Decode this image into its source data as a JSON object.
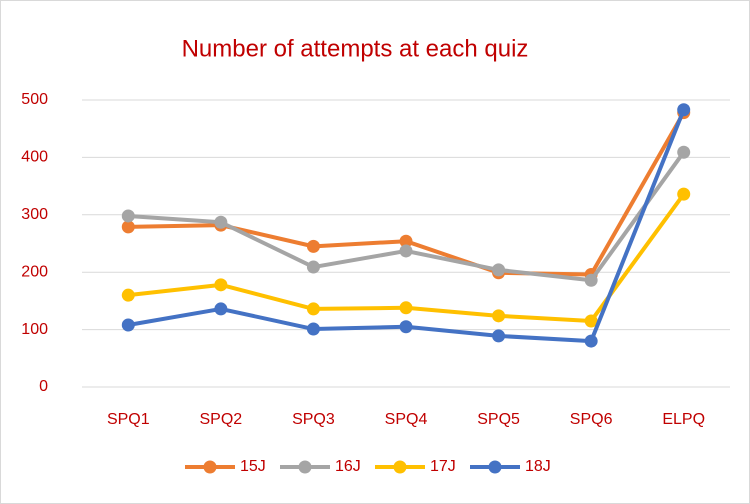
{
  "chart_data": {
    "type": "line",
    "title": "Number of attempts at each quiz",
    "categories": [
      "SPQ1",
      "SPQ2",
      "SPQ3",
      "SPQ4",
      "SPQ5",
      "SPQ6",
      "ELPQ"
    ],
    "series": [
      {
        "name": "15J",
        "color": "#ED7D31",
        "values": [
          279,
          282,
          245,
          254,
          199,
          196,
          478
        ]
      },
      {
        "name": "16J",
        "color": "#A5A5A5",
        "values": [
          298,
          287,
          209,
          237,
          204,
          186,
          409
        ]
      },
      {
        "name": "17J",
        "color": "#FFC000",
        "values": [
          160,
          178,
          136,
          138,
          124,
          115,
          336
        ]
      },
      {
        "name": "18J",
        "color": "#4472C4",
        "values": [
          108,
          136,
          101,
          105,
          89,
          80,
          483
        ]
      }
    ],
    "ylim": [
      0,
      500
    ],
    "yticks": [
      0,
      100,
      200,
      300,
      400,
      500
    ],
    "grid": true,
    "legend": "bottom"
  }
}
